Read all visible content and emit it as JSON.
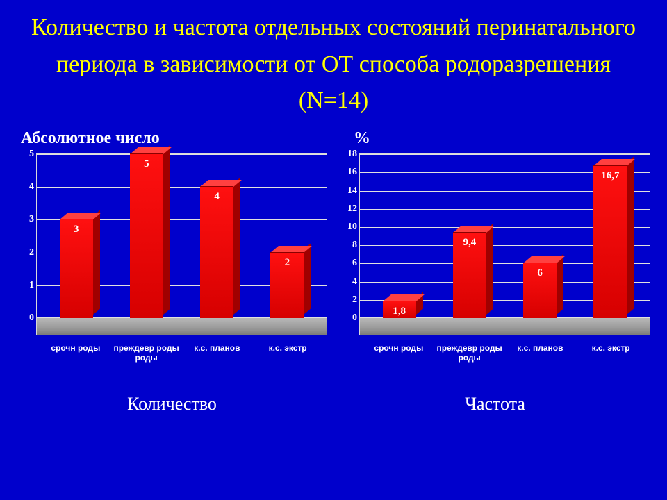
{
  "title": "Количество и частота отдельных состояний перинатального периода в зависимости от ОТ способа родоразрешения  (N=14)",
  "background_color": "#0000cc",
  "title_color": "#ffff00",
  "text_color": "#ffffff",
  "charts": [
    {
      "id": "count",
      "title": "Абсолютное число",
      "subtitle": "Количество",
      "type": "bar-3d",
      "categories": [
        "срочн роды",
        "преждевр роды роды",
        "к.с. планов",
        "к.с. экстр"
      ],
      "values": [
        3,
        5,
        4,
        2
      ],
      "value_labels": [
        "3",
        "5",
        "4",
        "2"
      ],
      "bar_color": "#e30000",
      "ylim": [
        0,
        5
      ],
      "ytick_step": 1,
      "grid_color": "#e0e0e0",
      "floor_color": "#9a9a9a"
    },
    {
      "id": "freq",
      "title": "%",
      "subtitle": "Частота",
      "type": "bar-3d",
      "categories": [
        "срочн роды",
        "преждевр роды роды",
        "к.с. планов",
        "к.с. экстр"
      ],
      "values": [
        1.8,
        9.4,
        6,
        16.7
      ],
      "value_labels": [
        "1,8",
        "9,4",
        "6",
        "16,7"
      ],
      "bar_color": "#e30000",
      "ylim": [
        0,
        18
      ],
      "ytick_step": 2,
      "grid_color": "#e0e0e0",
      "floor_color": "#9a9a9a"
    }
  ]
}
